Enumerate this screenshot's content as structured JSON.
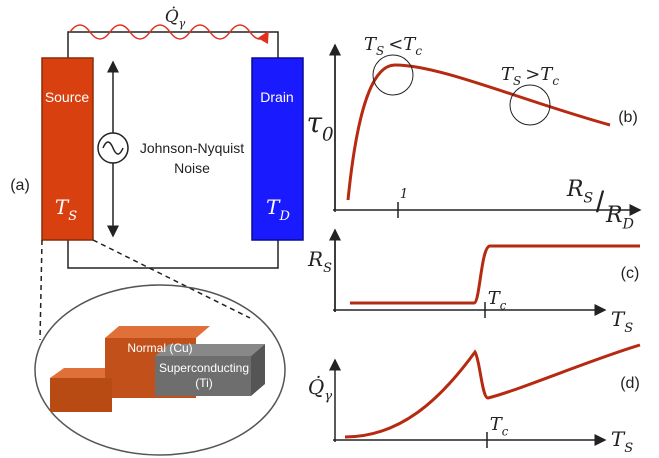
{
  "panel_a": {
    "label": "(a)",
    "heat_flow": {
      "symbol": "Q̇",
      "sub": "γ"
    },
    "source": {
      "title": "Source",
      "temp": {
        "symbol": "T",
        "sub": "S"
      }
    },
    "drain": {
      "title": "Drain",
      "temp": {
        "symbol": "T",
        "sub": "D"
      }
    },
    "noise": [
      "Johnson-Nyquist",
      "Noise"
    ],
    "inset": {
      "normal": "Normal (Cu)",
      "superconducting": [
        "Superconducting",
        "(Ti)"
      ]
    }
  },
  "panel_b": {
    "label": "(b)",
    "y_label": {
      "symbol": "τ",
      "sub": "0"
    },
    "x_label": {
      "numerator": {
        "symbol": "R",
        "sub": "S"
      },
      "slash": "/",
      "denominator": {
        "symbol": "R",
        "sub": "D"
      }
    },
    "tick": "1",
    "annotations": [
      {
        "left": {
          "symbol": "T",
          "sub": "S"
        },
        "op": "<",
        "right": {
          "symbol": "T",
          "sub": "c"
        }
      },
      {
        "left": {
          "symbol": "T",
          "sub": "S"
        },
        "op": ">",
        "right": {
          "symbol": "T",
          "sub": "c"
        }
      }
    ]
  },
  "panel_c": {
    "label": "(c)",
    "y_label": {
      "symbol": "R",
      "sub": "S"
    },
    "tick": {
      "symbol": "T",
      "sub": "c"
    },
    "x_label": {
      "symbol": "T",
      "sub": "S"
    }
  },
  "panel_d": {
    "label": "(d)",
    "y_label": {
      "symbol": "Q̇",
      "sub": "γ"
    },
    "tick": {
      "symbol": "T",
      "sub": "c"
    },
    "x_label": {
      "symbol": "T",
      "sub": "S"
    }
  }
}
